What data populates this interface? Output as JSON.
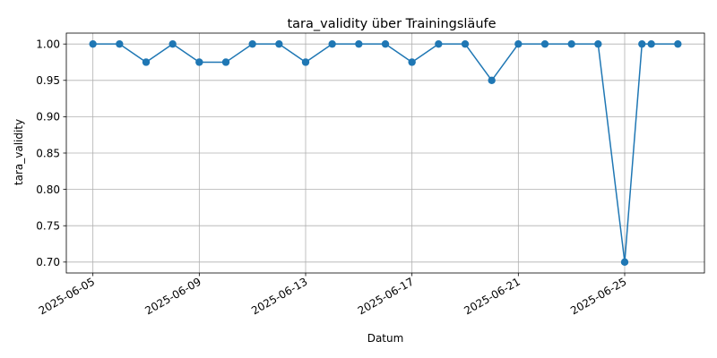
{
  "chart_data": {
    "type": "line",
    "title": "tara_validity über Trainingsläufe",
    "xlabel": "Datum",
    "ylabel": "tara_validity",
    "x_type": "date",
    "x": [
      "2025-06-05",
      "2025-06-06",
      "2025-06-07",
      "2025-06-08",
      "2025-06-09",
      "2025-06-10",
      "2025-06-11",
      "2025-06-12",
      "2025-06-13",
      "2025-06-14",
      "2025-06-15",
      "2025-06-16",
      "2025-06-17",
      "2025-06-18",
      "2025-06-19",
      "2025-06-20",
      "2025-06-21",
      "2025-06-22",
      "2025-06-23",
      "2025-06-24",
      "2025-06-25",
      "2025-06-26",
      "2025-06-26",
      "2025-06-27"
    ],
    "series": [
      {
        "values": [
          1.0,
          1.0,
          0.975,
          1.0,
          0.975,
          0.975,
          1.0,
          1.0,
          0.975,
          1.0,
          1.0,
          1.0,
          0.975,
          1.0,
          1.0,
          0.95,
          1.0,
          1.0,
          1.0,
          1.0,
          0.7,
          1.0,
          1.0,
          1.0
        ],
        "color": "#1f77b4",
        "marker": "circle"
      }
    ],
    "xticks": [
      "2025-06-05",
      "2025-06-09",
      "2025-06-13",
      "2025-06-17",
      "2025-06-21",
      "2025-06-25"
    ],
    "yticks": [
      0.7,
      0.75,
      0.8,
      0.85,
      0.9,
      0.95,
      1.0
    ],
    "ytick_labels": [
      "0.70",
      "0.75",
      "0.80",
      "0.85",
      "0.90",
      "0.95",
      "1.00"
    ],
    "ylim": [
      0.685,
      1.015
    ],
    "xlim": [
      "2025-06-04",
      "2025-06-28"
    ],
    "grid": true,
    "legend": "none"
  }
}
